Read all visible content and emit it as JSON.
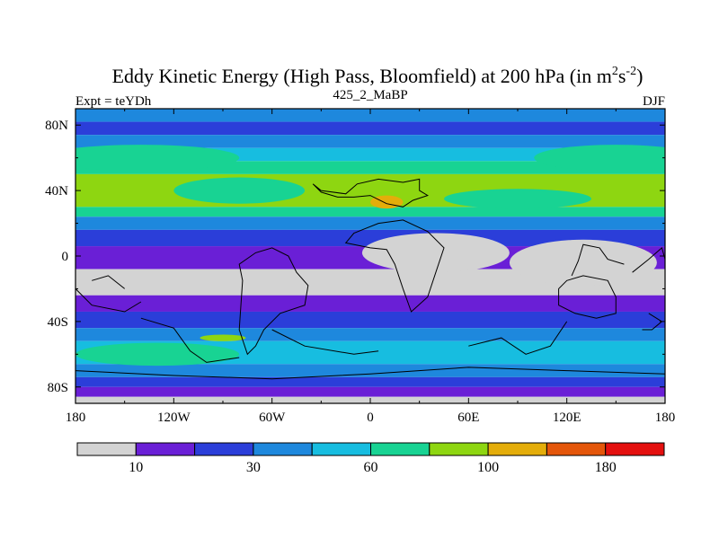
{
  "chart_data": {
    "type": "heatmap",
    "title": "Eddy Kinetic Energy (High Pass, Bloomfield) at 200 hPa (in m",
    "title_sup1": "2",
    "title_mid": "s",
    "title_sup2": "-2",
    "title_end": ")",
    "left_label": "Expt = teYDh",
    "center_label": "425_2_MaBP",
    "right_label": "DJF",
    "x_ticks": [
      {
        "value": -180,
        "label": "180"
      },
      {
        "value": -120,
        "label": "120W"
      },
      {
        "value": -60,
        "label": "60W"
      },
      {
        "value": 0,
        "label": "0"
      },
      {
        "value": 60,
        "label": "60E"
      },
      {
        "value": 120,
        "label": "120E"
      },
      {
        "value": 180,
        "label": "180"
      }
    ],
    "y_ticks": [
      {
        "value": 80,
        "label": "80N"
      },
      {
        "value": 40,
        "label": "40N"
      },
      {
        "value": 0,
        "label": "0"
      },
      {
        "value": -40,
        "label": "40S"
      },
      {
        "value": -80,
        "label": "80S"
      }
    ],
    "xlim": [
      -180,
      180
    ],
    "ylim": [
      -90,
      90
    ],
    "contour_levels": [
      10,
      20,
      30,
      45,
      60,
      80,
      100,
      140,
      180
    ],
    "colorbar_colors": [
      "#d3d3d3",
      "#6a1fd6",
      "#2b3ed9",
      "#1e88dd",
      "#17bde0",
      "#18d393",
      "#8ed611",
      "#e4ad0a",
      "#e4560a",
      "#e4100f"
    ],
    "colorbar_labels": [
      {
        "after_box": 1,
        "label": "10"
      },
      {
        "after_box": 3,
        "label": "30"
      },
      {
        "after_box": 5,
        "label": "60"
      },
      {
        "after_box": 7,
        "label": "100"
      },
      {
        "after_box": 9,
        "label": "180"
      }
    ],
    "field_bands": [
      {
        "lat_top": 90,
        "lat_bottom": 82,
        "level": 3
      },
      {
        "lat_top": 82,
        "lat_bottom": 74,
        "level": 2
      },
      {
        "lat_top": 74,
        "lat_bottom": 66,
        "level": 3
      },
      {
        "lat_top": 66,
        "lat_bottom": 58,
        "level": 4
      },
      {
        "lat_top": 58,
        "lat_bottom": 50,
        "level": 5
      },
      {
        "lat_top": 50,
        "lat_bottom": 30,
        "level": 6
      },
      {
        "lat_top": 30,
        "lat_bottom": 24,
        "level": 5
      },
      {
        "lat_top": 24,
        "lat_bottom": 16,
        "level": 3
      },
      {
        "lat_top": 16,
        "lat_bottom": 6,
        "level": 2
      },
      {
        "lat_top": 6,
        "lat_bottom": -8,
        "level": 1
      },
      {
        "lat_top": -8,
        "lat_bottom": -24,
        "level": 0
      },
      {
        "lat_top": -24,
        "lat_bottom": -34,
        "level": 1
      },
      {
        "lat_top": -34,
        "lat_bottom": -44,
        "level": 2
      },
      {
        "lat_top": -44,
        "lat_bottom": -52,
        "level": 3
      },
      {
        "lat_top": -52,
        "lat_bottom": -66,
        "level": 4
      },
      {
        "lat_top": -66,
        "lat_bottom": -74,
        "level": 3
      },
      {
        "lat_top": -74,
        "lat_bottom": -80,
        "level": 2
      },
      {
        "lat_top": -80,
        "lat_bottom": -86,
        "level": 1
      },
      {
        "lat_top": -86,
        "lat_bottom": -90,
        "level": 0
      }
    ],
    "field_patches": [
      {
        "lon": -140,
        "lat": 60,
        "rlon": 60,
        "rlat": 8,
        "level": 5
      },
      {
        "lon": 150,
        "lat": 60,
        "rlon": 50,
        "rlat": 8,
        "level": 5
      },
      {
        "lon": -80,
        "lat": 40,
        "rlon": 40,
        "rlat": 8,
        "level": 5
      },
      {
        "lon": 90,
        "lat": 35,
        "rlon": 45,
        "rlat": 6,
        "level": 5
      },
      {
        "lon": 10,
        "lat": 33,
        "rlon": 10,
        "rlat": 4,
        "level": 7
      },
      {
        "lon": 40,
        "lat": 2,
        "rlon": 45,
        "rlat": 12,
        "level": 0
      },
      {
        "lon": 130,
        "lat": -4,
        "rlon": 45,
        "rlat": 14,
        "level": 0
      },
      {
        "lon": -130,
        "lat": -60,
        "rlon": 50,
        "rlat": 7,
        "level": 5
      },
      {
        "lon": -90,
        "lat": -50,
        "rlon": 14,
        "rlat": 2,
        "level": 6
      }
    ],
    "land_outlines": [
      [
        [
          -35,
          44
        ],
        [
          -30,
          40
        ],
        [
          -15,
          38
        ],
        [
          -8,
          44
        ],
        [
          5,
          47
        ],
        [
          20,
          45
        ],
        [
          30,
          47
        ],
        [
          30,
          40
        ],
        [
          35,
          37
        ],
        [
          26,
          34
        ],
        [
          20,
          30
        ],
        [
          10,
          32
        ],
        [
          0,
          37
        ],
        [
          -10,
          36
        ],
        [
          -20,
          36
        ],
        [
          -30,
          39
        ]
      ],
      [
        [
          -50,
          0
        ],
        [
          -45,
          -10
        ],
        [
          -38,
          -18
        ],
        [
          -40,
          -30
        ],
        [
          -55,
          -35
        ],
        [
          -65,
          -45
        ],
        [
          -70,
          -55
        ],
        [
          -75,
          -60
        ],
        [
          -80,
          -45
        ],
        [
          -78,
          -15
        ],
        [
          -80,
          -5
        ],
        [
          -70,
          2
        ],
        [
          -60,
          5
        ]
      ],
      [
        [
          -15,
          8
        ],
        [
          0,
          5
        ],
        [
          10,
          4
        ],
        [
          15,
          -5
        ],
        [
          20,
          -20
        ],
        [
          25,
          -34
        ],
        [
          35,
          -25
        ],
        [
          40,
          -10
        ],
        [
          45,
          5
        ],
        [
          35,
          15
        ],
        [
          20,
          22
        ],
        [
          5,
          20
        ],
        [
          -10,
          14
        ]
      ],
      [
        [
          120,
          -15
        ],
        [
          130,
          -12
        ],
        [
          145,
          -15
        ],
        [
          150,
          -25
        ],
        [
          150,
          -35
        ],
        [
          138,
          -38
        ],
        [
          125,
          -35
        ],
        [
          115,
          -30
        ],
        [
          115,
          -20
        ]
      ],
      [
        [
          170,
          -35
        ],
        [
          178,
          -40
        ],
        [
          172,
          -45
        ],
        [
          166,
          -45
        ]
      ],
      [
        [
          -180,
          -70
        ],
        [
          -120,
          -73
        ],
        [
          -60,
          -75
        ],
        [
          0,
          -72
        ],
        [
          60,
          -68
        ],
        [
          120,
          -70
        ],
        [
          180,
          -72
        ]
      ],
      [
        [
          -180,
          -20
        ],
        [
          -170,
          -30
        ],
        [
          -150,
          -34
        ],
        [
          -140,
          -28
        ]
      ],
      [
        [
          -140,
          -38
        ],
        [
          -120,
          -44
        ],
        [
          -110,
          -58
        ],
        [
          -100,
          -65
        ],
        [
          -80,
          -62
        ]
      ],
      [
        [
          -60,
          -45
        ],
        [
          -40,
          -55
        ],
        [
          -10,
          -60
        ],
        [
          5,
          -58
        ]
      ],
      [
        [
          60,
          -55
        ],
        [
          80,
          -50
        ],
        [
          95,
          -60
        ],
        [
          110,
          -55
        ],
        [
          120,
          -40
        ]
      ],
      [
        [
          123,
          -12
        ],
        [
          127,
          -3
        ],
        [
          130,
          7
        ],
        [
          140,
          5
        ],
        [
          145,
          -2
        ],
        [
          155,
          -5
        ]
      ],
      [
        [
          160,
          -10
        ],
        [
          170,
          -2
        ],
        [
          178,
          5
        ],
        [
          180,
          -2
        ]
      ],
      [
        [
          -170,
          -15
        ],
        [
          -160,
          -12
        ],
        [
          -150,
          -20
        ]
      ]
    ]
  }
}
